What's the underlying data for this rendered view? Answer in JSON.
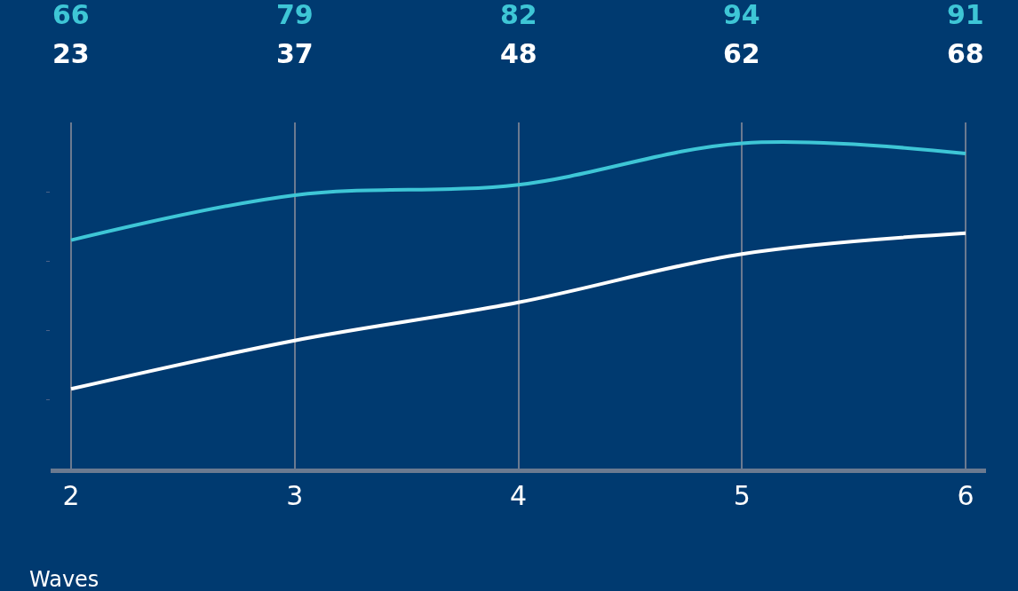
{
  "chart_data": {
    "type": "line",
    "xlabel": "Waves",
    "categories": [
      "2",
      "3",
      "4",
      "5",
      "6"
    ],
    "series": [
      {
        "color": "#3ec6d6",
        "values": [
          66,
          79,
          82,
          94,
          91
        ]
      },
      {
        "color": "#ffffff",
        "values": [
          23,
          37,
          48,
          62,
          68
        ]
      }
    ],
    "ylim": [
      0,
      100
    ],
    "yticks": [
      {
        "value": 20,
        "label": null
      },
      {
        "value": 40,
        "label": null
      },
      {
        "value": 60,
        "label": null
      },
      {
        "value": 80,
        "label": null
      }
    ],
    "tick_labels": "x",
    "grid": "x",
    "data_labels": true,
    "marker": "none",
    "line_style": "solid"
  }
}
